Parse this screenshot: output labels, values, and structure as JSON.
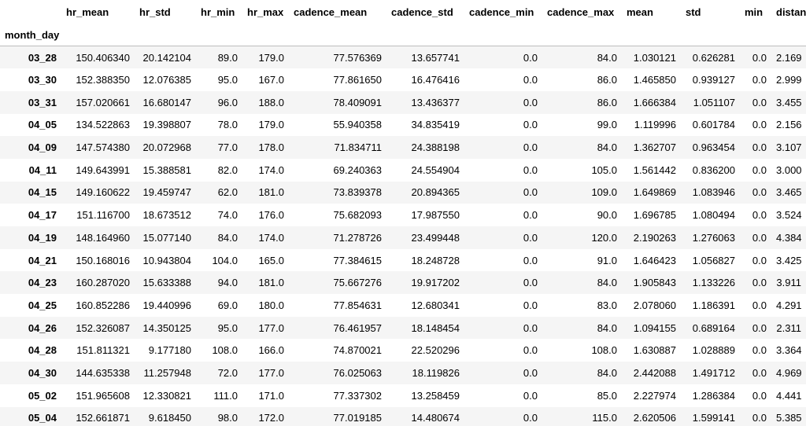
{
  "table": {
    "index_name": "month_day",
    "columns": [
      "hr_mean",
      "hr_std",
      "hr_min",
      "hr_max",
      "cadence_mean",
      "cadence_std",
      "cadence_min",
      "cadence_max",
      "mean",
      "std",
      "min",
      "distance"
    ],
    "rows": [
      {
        "index": "03_28",
        "values": [
          "150.406340",
          "20.142104",
          "89.0",
          "179.0",
          "77.576369",
          "13.657741",
          "0.0",
          "84.0",
          "1.030121",
          "0.626281",
          "0.0",
          "2.169"
        ]
      },
      {
        "index": "03_30",
        "values": [
          "152.388350",
          "12.076385",
          "95.0",
          "167.0",
          "77.861650",
          "16.476416",
          "0.0",
          "86.0",
          "1.465850",
          "0.939127",
          "0.0",
          "2.999"
        ]
      },
      {
        "index": "03_31",
        "values": [
          "157.020661",
          "16.680147",
          "96.0",
          "188.0",
          "78.409091",
          "13.436377",
          "0.0",
          "86.0",
          "1.666384",
          "1.051107",
          "0.0",
          "3.455"
        ]
      },
      {
        "index": "04_05",
        "values": [
          "134.522863",
          "19.398807",
          "78.0",
          "179.0",
          "55.940358",
          "34.835419",
          "0.0",
          "99.0",
          "1.119996",
          "0.601784",
          "0.0",
          "2.156"
        ]
      },
      {
        "index": "04_09",
        "values": [
          "147.574380",
          "20.072968",
          "77.0",
          "178.0",
          "71.834711",
          "24.388198",
          "0.0",
          "84.0",
          "1.362707",
          "0.963454",
          "0.0",
          "3.107"
        ]
      },
      {
        "index": "04_11",
        "values": [
          "149.643991",
          "15.388581",
          "82.0",
          "174.0",
          "69.240363",
          "24.554904",
          "0.0",
          "105.0",
          "1.561442",
          "0.836200",
          "0.0",
          "3.000"
        ]
      },
      {
        "index": "04_15",
        "values": [
          "149.160622",
          "19.459747",
          "62.0",
          "181.0",
          "73.839378",
          "20.894365",
          "0.0",
          "109.0",
          "1.649869",
          "1.083946",
          "0.0",
          "3.465"
        ]
      },
      {
        "index": "04_17",
        "values": [
          "151.116700",
          "18.673512",
          "74.0",
          "176.0",
          "75.682093",
          "17.987550",
          "0.0",
          "90.0",
          "1.696785",
          "1.080494",
          "0.0",
          "3.524"
        ]
      },
      {
        "index": "04_19",
        "values": [
          "148.164960",
          "15.077140",
          "84.0",
          "174.0",
          "71.278726",
          "23.499448",
          "0.0",
          "120.0",
          "2.190263",
          "1.276063",
          "0.0",
          "4.384"
        ]
      },
      {
        "index": "04_21",
        "values": [
          "150.168016",
          "10.943804",
          "104.0",
          "165.0",
          "77.384615",
          "18.248728",
          "0.0",
          "91.0",
          "1.646423",
          "1.056827",
          "0.0",
          "3.425"
        ]
      },
      {
        "index": "04_23",
        "values": [
          "160.287020",
          "15.633388",
          "94.0",
          "181.0",
          "75.667276",
          "19.917202",
          "0.0",
          "84.0",
          "1.905843",
          "1.133226",
          "0.0",
          "3.911"
        ]
      },
      {
        "index": "04_25",
        "values": [
          "160.852286",
          "19.440996",
          "69.0",
          "180.0",
          "77.854631",
          "12.680341",
          "0.0",
          "83.0",
          "2.078060",
          "1.186391",
          "0.0",
          "4.291"
        ]
      },
      {
        "index": "04_26",
        "values": [
          "152.326087",
          "14.350125",
          "95.0",
          "177.0",
          "76.461957",
          "18.148454",
          "0.0",
          "84.0",
          "1.094155",
          "0.689164",
          "0.0",
          "2.311"
        ]
      },
      {
        "index": "04_28",
        "values": [
          "151.811321",
          "9.177180",
          "108.0",
          "166.0",
          "74.870021",
          "22.520296",
          "0.0",
          "108.0",
          "1.630887",
          "1.028889",
          "0.0",
          "3.364"
        ]
      },
      {
        "index": "04_30",
        "values": [
          "144.635338",
          "11.257948",
          "72.0",
          "177.0",
          "76.025063",
          "18.119826",
          "0.0",
          "84.0",
          "2.442088",
          "1.491712",
          "0.0",
          "4.969"
        ]
      },
      {
        "index": "05_02",
        "values": [
          "151.965608",
          "12.330821",
          "111.0",
          "171.0",
          "77.337302",
          "13.258459",
          "0.0",
          "85.0",
          "2.227974",
          "1.286384",
          "0.0",
          "4.441"
        ]
      },
      {
        "index": "05_04",
        "values": [
          "152.661871",
          "9.618450",
          "98.0",
          "172.0",
          "77.019185",
          "14.480674",
          "0.0",
          "115.0",
          "2.620506",
          "1.599141",
          "0.0",
          "5.385"
        ]
      }
    ]
  }
}
